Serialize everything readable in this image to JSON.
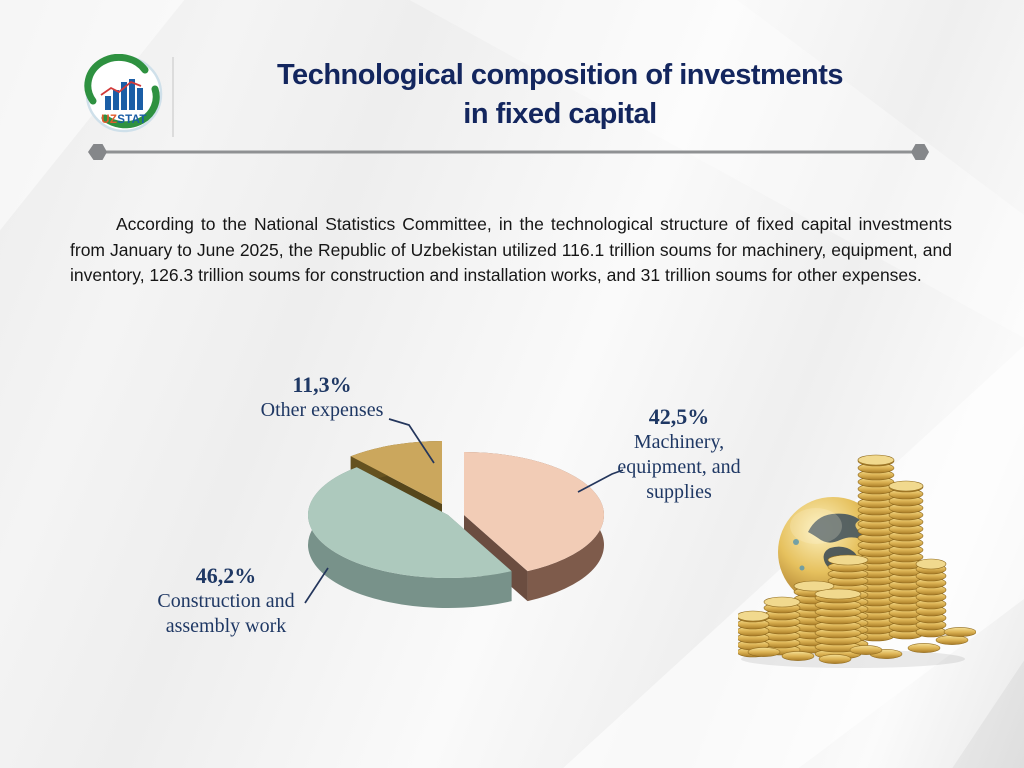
{
  "header": {
    "logo": {
      "uz": "UZ",
      "stat": "STAT"
    },
    "title_line1": "Technological composition of investments",
    "title_line2": "in fixed capital"
  },
  "paragraph": "According to the National Statistics Committee, in the technological structure of fixed capital investments from January to June 2025, the Republic of Uzbekistan utilized 116.1 trillion soums for machinery, equipment, and inventory, 126.3 trillion soums for construction and installation works, and 31 trillion soums for other expenses.",
  "chart_data": {
    "type": "pie",
    "style": "3d-exploded",
    "unit": "percent",
    "title": "",
    "start_angle_deg": 90,
    "direction": "clockwise",
    "legend_position": "callout-labels",
    "slices": [
      {
        "label": "Machinery, equipment, and supplies",
        "value": 42.5,
        "display": "42,5%",
        "color": "#f2ccb6",
        "side_color": "#7e5b4b"
      },
      {
        "label": "Construction and assembly work",
        "value": 46.2,
        "display": "46,2%",
        "color": "#adc9bd",
        "side_color": "#78928a"
      },
      {
        "label": "Other expenses",
        "value": 11.3,
        "display": "11,3%",
        "color": "#cba75d",
        "side_color": "#655220"
      }
    ]
  },
  "colors": {
    "title_text": "#13265e",
    "callout_text": "#1f3864",
    "rule": "#8b8d90",
    "background": "#ededed",
    "leader_line": "#24365c"
  }
}
